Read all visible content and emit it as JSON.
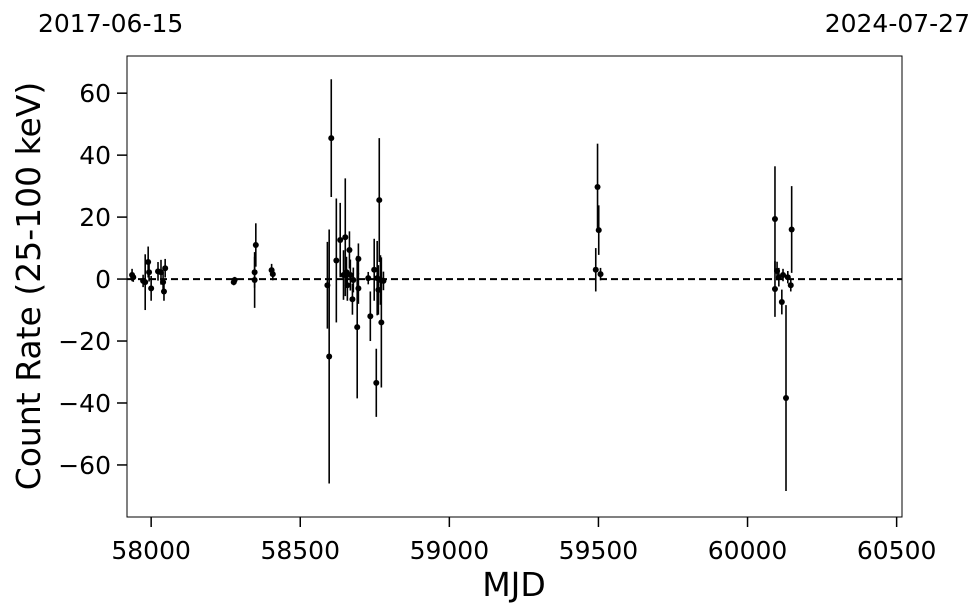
{
  "chart_data": {
    "type": "errorbar",
    "annotations": {
      "left": "2017-06-15",
      "right": "2024-07-27"
    },
    "xlabel": "MJD",
    "ylabel": "Count Rate (25-100 keV)",
    "xlim": [
      57919,
      60518
    ],
    "ylim": [
      -76.8,
      72
    ],
    "xticks": [
      58000,
      58500,
      59000,
      59500,
      60000,
      60500
    ],
    "yticks": [
      {
        "value": -60,
        "label": "−60"
      },
      {
        "value": -40,
        "label": "−40"
      },
      {
        "value": -20,
        "label": "−20"
      },
      0,
      20,
      40,
      60
    ],
    "hline": 0,
    "color": "#000000",
    "x": [
      57936,
      57940,
      57973,
      57980,
      57990,
      57993,
      58000,
      58023,
      58033,
      58040,
      58043,
      58047,
      58277,
      58280,
      58347,
      58347,
      58351,
      58404,
      58408,
      58591,
      58597,
      58604,
      58621,
      58634,
      58645,
      58651,
      58655,
      58658,
      58665,
      58668,
      58675,
      58678,
      58691,
      58695,
      58695,
      58728,
      58735,
      58748,
      58755,
      58758,
      58762,
      58765,
      58769,
      58772,
      58779,
      59491,
      59497,
      59501,
      59507,
      60092,
      60092,
      60099,
      60105,
      60115,
      60119,
      60129,
      60135,
      60145,
      60148
    ],
    "values": [
      1.3,
      0.6,
      -0.6,
      -1,
      5.5,
      2.2,
      -3,
      2.5,
      2.2,
      -1,
      -4,
      3.5,
      -1,
      -0.3,
      2.2,
      -0.3,
      11,
      2.9,
      1.6,
      -2,
      -25,
      45.5,
      6,
      12.6,
      1.3,
      13.5,
      2.2,
      -2,
      9.4,
      1.3,
      -6.5,
      -0.3,
      -15.5,
      6.5,
      -3,
      0.3,
      -12,
      3,
      -33.5,
      0.3,
      -3.5,
      25.5,
      -0.3,
      -14,
      -0.6,
      3,
      29.7,
      15.8,
      1.6,
      19.4,
      -3.2,
      2.6,
      0.6,
      -7.4,
      1.3,
      -38.4,
      0.6,
      -2,
      16
    ],
    "errors": [
      2,
      1.5,
      2,
      9,
      5,
      3,
      4,
      3,
      4,
      3,
      3,
      3,
      1,
      1,
      5,
      9,
      7,
      2,
      2,
      14,
      41,
      19,
      20,
      12,
      8,
      19,
      5,
      5,
      6,
      5,
      5,
      4,
      23,
      5,
      5,
      2,
      8,
      10,
      11,
      12,
      8,
      20,
      8,
      21,
      3,
      7,
      14,
      8,
      2,
      17,
      9,
      3,
      3,
      4,
      2,
      30,
      2,
      2,
      14
    ]
  }
}
